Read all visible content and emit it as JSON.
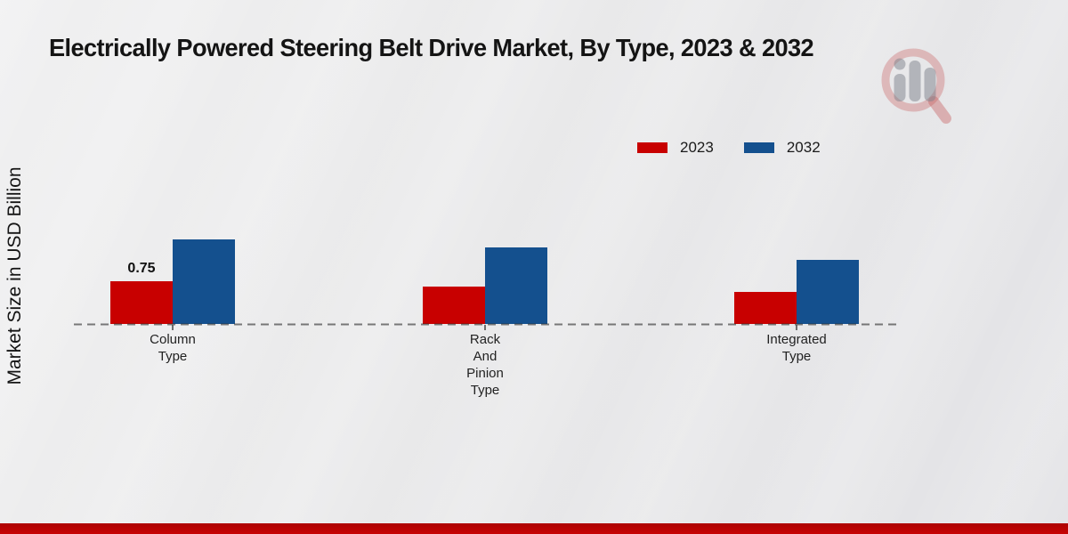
{
  "title": "Electrically Powered Steering Belt Drive Market, By Type, 2023 & 2032",
  "ylabel": "Market Size in USD Billion",
  "colors": {
    "series_2023_red": "#c80000",
    "series_2032_blue": "#14508e",
    "bottom_strip_red": "#c40404",
    "background_gray": "#e9e9ea"
  },
  "icons": {
    "logo": "magnifier-bar-chart-logo"
  },
  "legend": {
    "items": [
      {
        "label": "2023"
      },
      {
        "label": "2032"
      }
    ]
  },
  "chart_data": {
    "type": "bar",
    "title": "Electrically Powered Steering Belt Drive Market, By Type, 2023 & 2032",
    "xlabel": "",
    "ylabel": "Market Size in USD Billion",
    "categories": [
      "Column Type",
      "Rack And Pinion Type",
      "Integrated Type"
    ],
    "category_tick_labels": [
      "Column\nType",
      "Rack\nAnd\nPinion\nType",
      "Integrated\nType"
    ],
    "series": [
      {
        "name": "2023",
        "color": "#c80000",
        "values": [
          0.75,
          0.66,
          0.57
        ]
      },
      {
        "name": "2032",
        "color": "#14508e",
        "values": [
          1.48,
          1.34,
          1.13
        ]
      }
    ],
    "data_labels": [
      {
        "series": "2023",
        "category": "Column Type",
        "text": "0.75"
      }
    ],
    "ylim": [
      0,
      1.6
    ],
    "grid": false,
    "legend_position": "top-right",
    "baseline_style": "dashed",
    "y_axis_ticks_visible": false
  }
}
